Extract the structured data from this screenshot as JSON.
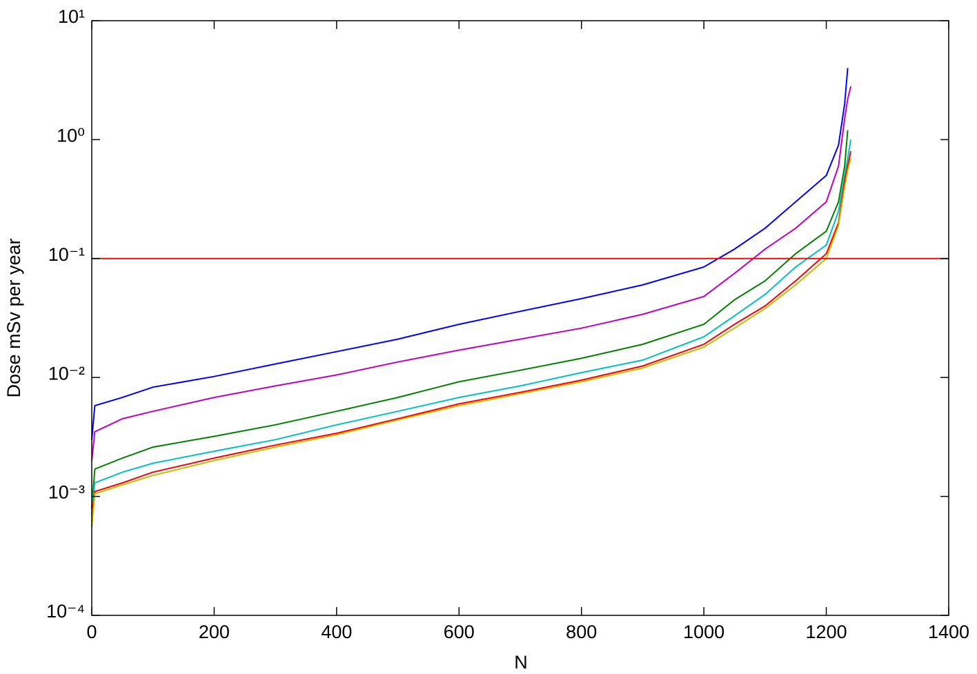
{
  "chart_data": {
    "type": "line",
    "xlabel": "N",
    "ylabel": "Dose mSv per year",
    "log_y": true,
    "x": [
      0,
      5,
      50,
      100,
      200,
      300,
      400,
      500,
      600,
      700,
      800,
      900,
      1000,
      1050,
      1100,
      1150,
      1200,
      1220,
      1230,
      1235,
      1240
    ],
    "series": [
      {
        "color": "#0000ff",
        "values": [
          0.003,
          0.0058,
          0.0068,
          0.0083,
          0.0102,
          0.013,
          0.0165,
          0.021,
          0.028,
          0.036,
          0.046,
          0.06,
          0.085,
          0.12,
          0.18,
          0.3,
          0.5,
          0.9,
          2,
          4,
          null
        ]
      },
      {
        "color": "#c000c0",
        "values": [
          0.002,
          0.0035,
          0.0045,
          0.0052,
          0.0068,
          0.0085,
          0.0105,
          0.0135,
          0.017,
          0.021,
          0.026,
          0.034,
          0.048,
          0.075,
          0.12,
          0.18,
          0.3,
          0.6,
          1.5,
          2.2,
          2.8
        ]
      },
      {
        "color": "#008000",
        "values": [
          0.0008,
          0.0017,
          0.0021,
          0.0026,
          0.0032,
          0.004,
          0.0052,
          0.0068,
          0.0092,
          0.0115,
          0.0145,
          0.019,
          0.028,
          0.045,
          0.065,
          0.11,
          0.17,
          0.3,
          0.6,
          1.2,
          null
        ]
      },
      {
        "color": "#00c0c0",
        "values": [
          0.0008,
          0.0013,
          0.0016,
          0.0019,
          0.0024,
          0.003,
          0.004,
          0.0052,
          0.0068,
          0.0085,
          0.011,
          0.014,
          0.022,
          0.033,
          0.05,
          0.085,
          0.13,
          0.25,
          0.5,
          0.7,
          1.0
        ]
      },
      {
        "color": "#ff0000",
        "values": [
          0.0007,
          0.0011,
          0.0013,
          0.0016,
          0.0021,
          0.0027,
          0.0034,
          0.0045,
          0.006,
          0.0075,
          0.0095,
          0.0125,
          0.019,
          0.028,
          0.04,
          0.065,
          0.11,
          0.2,
          0.45,
          0.6,
          0.8
        ]
      },
      {
        "color": "#c0c000",
        "values": [
          0.00055,
          0.00105,
          0.00125,
          0.0015,
          0.002,
          0.0026,
          0.0033,
          0.0044,
          0.0058,
          0.0073,
          0.0092,
          0.012,
          0.018,
          0.026,
          0.038,
          0.06,
          0.1,
          0.19,
          0.4,
          0.55,
          0.7
        ]
      }
    ],
    "hlines": [
      {
        "value": 0.1,
        "color": "#ff0000"
      }
    ],
    "xlim": [
      0,
      1400
    ],
    "xticks": [
      0,
      200,
      400,
      600,
      800,
      1000,
      1200,
      1400
    ],
    "ylim": [
      0.0001,
      10
    ],
    "yticks": [
      {
        "value": 0.0001,
        "label": "10⁻⁴"
      },
      {
        "value": 0.001,
        "label": "10⁻³"
      },
      {
        "value": 0.01,
        "label": "10⁻²"
      },
      {
        "value": 0.1,
        "label": "10⁻¹"
      },
      {
        "value": 1,
        "label": "10⁰"
      },
      {
        "value": 10,
        "label": "10¹"
      }
    ]
  }
}
